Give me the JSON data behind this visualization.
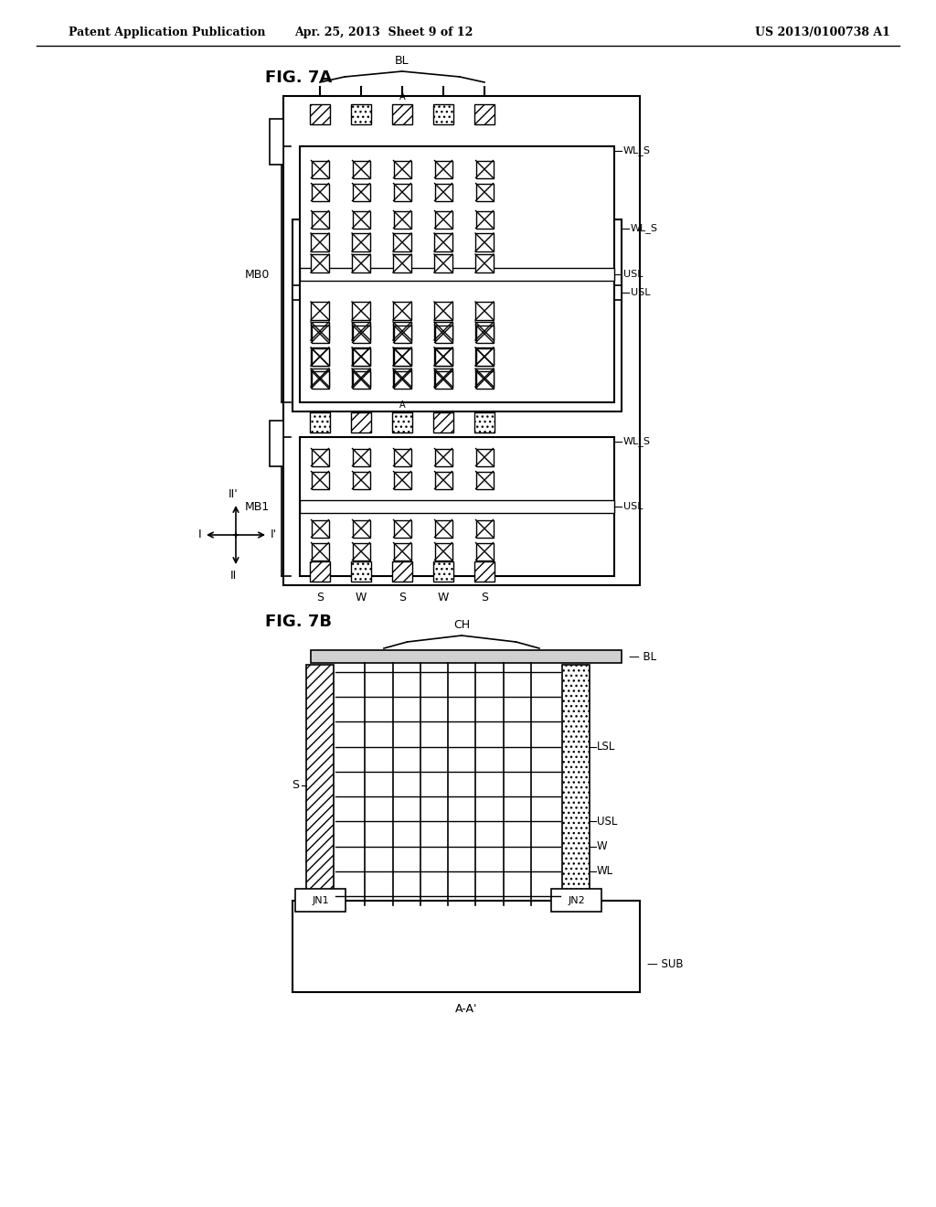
{
  "header_left": "Patent Application Publication",
  "header_mid": "Apr. 25, 2013  Sheet 9 of 12",
  "header_right": "US 2013/0100738 A1",
  "fig7a_title": "FIG. 7A",
  "fig7b_title": "FIG. 7B",
  "bg_color": "#ffffff",
  "line_color": "#000000"
}
